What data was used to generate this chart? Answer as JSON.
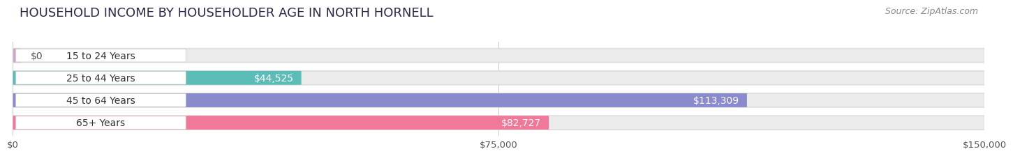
{
  "title": "HOUSEHOLD INCOME BY HOUSEHOLDER AGE IN NORTH HORNELL",
  "source": "Source: ZipAtlas.com",
  "categories": [
    "15 to 24 Years",
    "25 to 44 Years",
    "45 to 64 Years",
    "65+ Years"
  ],
  "values": [
    0,
    44525,
    113309,
    82727
  ],
  "value_labels": [
    "$0",
    "$44,525",
    "$113,309",
    "$82,727"
  ],
  "bar_colors": [
    "#cba8cc",
    "#5bbcb8",
    "#8a8bcc",
    "#f07898"
  ],
  "bar_bg_color": "#ebebeb",
  "xlim": [
    0,
    150000
  ],
  "xticks": [
    0,
    75000,
    150000
  ],
  "xtick_labels": [
    "$0",
    "$75,000",
    "$150,000"
  ],
  "background_color": "#ffffff",
  "title_fontsize": 13,
  "source_fontsize": 9,
  "label_fontsize": 10,
  "tick_fontsize": 9.5,
  "bar_height": 0.62,
  "fig_width": 14.06,
  "fig_height": 2.33
}
